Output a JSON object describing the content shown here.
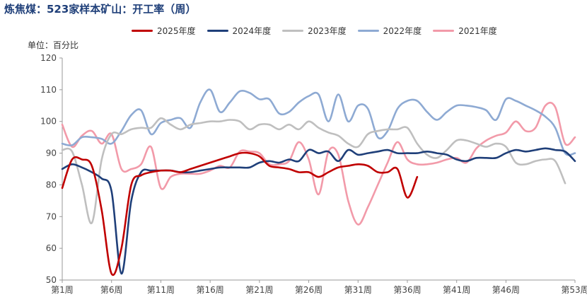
{
  "title": "炼焦煤：523家样本矿山：开工率（周）",
  "unit_label": "单位：百分比",
  "colors": {
    "title": "#1f3f79"
  },
  "chart_data": {
    "type": "line",
    "title": "炼焦煤：523家样本矿山：开工率（周）",
    "ylabel": "单位：百分比",
    "ylim": [
      50,
      120
    ],
    "yticks": [
      50,
      60,
      70,
      80,
      90,
      100,
      110,
      120
    ],
    "xlim": [
      1,
      53
    ],
    "xticks": [
      {
        "week": 1,
        "label": "第1周"
      },
      {
        "week": 6,
        "label": "第6周"
      },
      {
        "week": 11,
        "label": "第11周"
      },
      {
        "week": 16,
        "label": "第16周"
      },
      {
        "week": 21,
        "label": "第21周"
      },
      {
        "week": 26,
        "label": "第26周"
      },
      {
        "week": 31,
        "label": "第31周"
      },
      {
        "week": 36,
        "label": "第36周"
      },
      {
        "week": 41,
        "label": "第41周"
      },
      {
        "week": 46,
        "label": "第46周"
      },
      {
        "week": 53,
        "label": "第53周"
      }
    ],
    "grid": false,
    "legend_position": "top",
    "series": [
      {
        "name": "2025年度",
        "color": "#c00000",
        "values": [
          79,
          88,
          88,
          86,
          72,
          52,
          60,
          80,
          83,
          84,
          84.5,
          84.5,
          84,
          85,
          86,
          87,
          88,
          89,
          90,
          90,
          89,
          86,
          85.5,
          85,
          84,
          84,
          82.5,
          84,
          85.5,
          86,
          86.5,
          86,
          84,
          84,
          85,
          76,
          82.5
        ]
      },
      {
        "name": "2024年度",
        "color": "#1f3f79",
        "values": [
          85,
          86.5,
          85.5,
          84,
          82,
          78,
          52,
          75,
          84,
          84.5,
          84.5,
          84.5,
          84,
          84,
          84.5,
          85,
          85.5,
          85.5,
          85.5,
          85.5,
          87,
          87.5,
          87,
          88,
          87.5,
          91,
          90,
          90.5,
          87.5,
          91,
          89.5,
          90,
          90.5,
          91,
          90,
          90,
          90,
          90.5,
          90,
          89.5,
          88,
          87.5,
          88.5,
          88.5,
          88.5,
          90,
          91,
          90.5,
          91,
          91.5,
          91,
          90.5,
          87.5
        ]
      },
      {
        "name": "2023年度",
        "color": "#bfbfbf",
        "values": [
          91,
          90.5,
          80,
          68,
          88,
          96,
          96,
          97.5,
          98,
          98,
          101,
          99,
          97.5,
          99,
          99.5,
          100,
          100,
          100.5,
          100,
          97.5,
          99,
          99,
          97.5,
          99,
          97.5,
          100,
          98,
          96.5,
          95.5,
          93,
          92,
          96,
          97,
          97.5,
          97.5,
          98,
          93,
          89.5,
          88.5,
          91,
          94,
          94,
          93,
          92,
          93,
          92,
          87,
          86.5,
          87.5,
          88,
          87.5,
          80.5
        ]
      },
      {
        "name": "2022年度",
        "color": "#8eaad3",
        "values": [
          93,
          92.5,
          95,
          95,
          94.5,
          93,
          97,
          102,
          103.5,
          96,
          99.5,
          100.5,
          101,
          98,
          106,
          110,
          103,
          106,
          109.5,
          109,
          107,
          107,
          102.5,
          103,
          106,
          108,
          108.5,
          100,
          108.5,
          100,
          105,
          104,
          95,
          97,
          104,
          106.5,
          106.5,
          103,
          100.5,
          103,
          105,
          105,
          104.5,
          103.5,
          100.5,
          107,
          106.5,
          105,
          103.5,
          101.5,
          98,
          90,
          90
        ]
      },
      {
        "name": "2021年度",
        "color": "#f29aa9",
        "values": [
          99,
          92,
          95.5,
          97,
          93,
          96,
          85,
          85,
          86.5,
          92,
          79,
          82.5,
          83.5,
          83.5,
          83.5,
          84.5,
          86,
          85.5,
          90.5,
          90.5,
          90,
          86.5,
          86.5,
          87.5,
          93.5,
          88,
          77,
          90.5,
          89.5,
          75,
          67.5,
          73,
          80,
          87,
          93.5,
          88,
          86.5,
          86.5,
          87,
          88,
          88.5,
          87,
          91.5,
          94,
          95.5,
          96.5,
          100,
          97,
          98,
          105,
          104.5,
          93,
          95
        ]
      }
    ]
  }
}
